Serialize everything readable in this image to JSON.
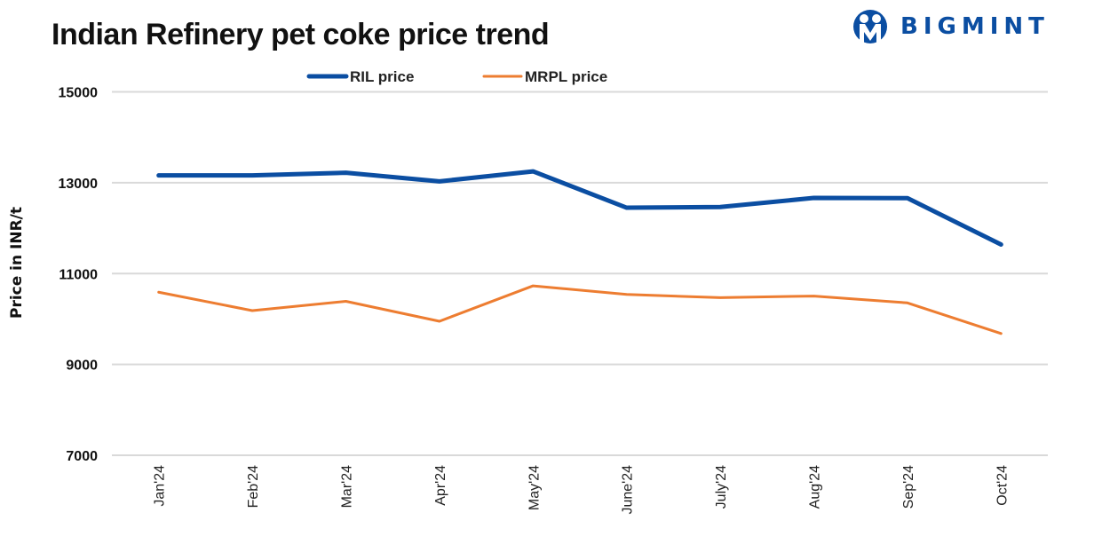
{
  "brand": {
    "name": "BIGMINT",
    "color": "#0b4ea2"
  },
  "chart_data": {
    "type": "line",
    "title": "Indian Refinery pet coke price trend",
    "xlabel": "",
    "ylabel": "Price in INR/t",
    "categories": [
      "Jan'24",
      "Feb'24",
      "Mar'24",
      "Apr'24",
      "May'24",
      "June'24",
      "July'24",
      "Aug'24",
      "Sep'24",
      "Oct'24"
    ],
    "series": [
      {
        "name": "RIL price",
        "color": "#0b4ea2",
        "values": [
          13160,
          13160,
          13220,
          13030,
          13250,
          12450,
          12465,
          12665,
          12660,
          11640
        ]
      },
      {
        "name": "MRPL price",
        "color": "#ed7d31",
        "values": [
          10590,
          10185,
          10390,
          9950,
          10730,
          10540,
          10470,
          10505,
          10355,
          9680
        ]
      }
    ],
    "ylim": [
      7000,
      15000
    ],
    "yticks": [
      15000,
      13000,
      11000,
      9000,
      7000
    ],
    "grid": true,
    "legend_position": "top-center"
  }
}
